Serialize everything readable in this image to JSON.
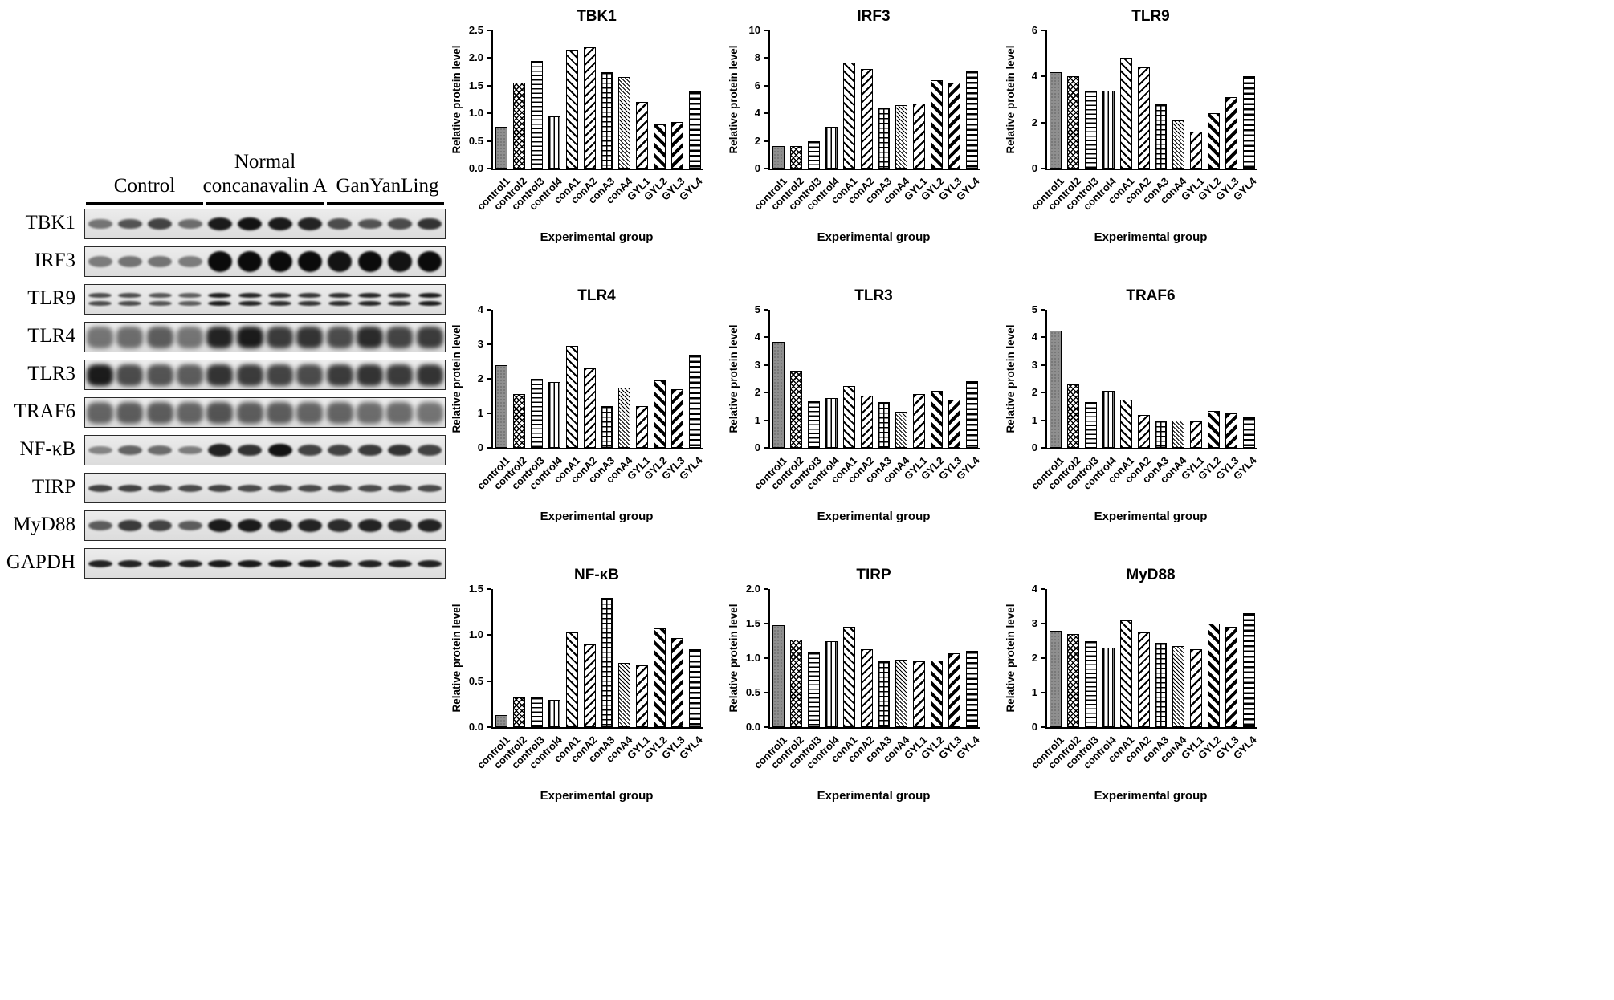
{
  "blot": {
    "group_headers": {
      "normal": "Normal",
      "control": "Control",
      "concanavalin": "concanavalin A",
      "ganyanling": "GanYanLing"
    },
    "rows": [
      {
        "label": "TBK1",
        "style": "normal",
        "intensities": [
          0.35,
          0.55,
          0.65,
          0.4,
          0.9,
          0.95,
          0.9,
          0.85,
          0.6,
          0.55,
          0.6,
          0.75
        ]
      },
      {
        "label": "IRF3",
        "style": "thick",
        "intensities": [
          0.3,
          0.35,
          0.35,
          0.3,
          1,
          1,
          1,
          1,
          0.95,
          1,
          0.95,
          1
        ]
      },
      {
        "label": "TLR9",
        "style": "double",
        "intensities": [
          0.6,
          0.6,
          0.55,
          0.5,
          0.9,
          0.85,
          0.8,
          0.75,
          0.8,
          0.85,
          0.8,
          0.9
        ]
      },
      {
        "label": "TLR4",
        "style": "smear",
        "intensities": [
          0.35,
          0.4,
          0.5,
          0.35,
          0.85,
          0.9,
          0.7,
          0.75,
          0.6,
          0.8,
          0.65,
          0.7
        ]
      },
      {
        "label": "TLR3",
        "style": "smear",
        "intensities": [
          0.9,
          0.6,
          0.55,
          0.5,
          0.75,
          0.7,
          0.65,
          0.6,
          0.7,
          0.75,
          0.7,
          0.75
        ]
      },
      {
        "label": "TRAF6",
        "style": "smear",
        "intensities": [
          0.45,
          0.5,
          0.5,
          0.45,
          0.55,
          0.5,
          0.5,
          0.45,
          0.45,
          0.4,
          0.4,
          0.35
        ]
      },
      {
        "label": "NF-κB",
        "style": "normal",
        "intensities": [
          0.25,
          0.45,
          0.4,
          0.3,
          0.85,
          0.75,
          0.95,
          0.65,
          0.65,
          0.7,
          0.75,
          0.65
        ]
      },
      {
        "label": "TIRP",
        "style": "thin",
        "intensities": [
          0.65,
          0.65,
          0.6,
          0.6,
          0.65,
          0.6,
          0.6,
          0.6,
          0.6,
          0.6,
          0.6,
          0.6
        ]
      },
      {
        "label": "MyD88",
        "style": "normal",
        "intensities": [
          0.5,
          0.7,
          0.65,
          0.5,
          0.9,
          0.9,
          0.85,
          0.85,
          0.8,
          0.85,
          0.8,
          0.85
        ]
      },
      {
        "label": "GAPDH",
        "style": "thin",
        "intensities": [
          0.85,
          0.85,
          0.85,
          0.85,
          0.9,
          0.9,
          0.9,
          0.9,
          0.85,
          0.85,
          0.85,
          0.85
        ]
      }
    ]
  },
  "chart_data": [
    {
      "type": "bar",
      "title": "TBK1",
      "xlabel": "Experimental group",
      "ylabel": "Relative protein level",
      "ylim": [
        0,
        2.5
      ],
      "yticks": [
        "0.0",
        "0.5",
        "1.0",
        "1.5",
        "2.0",
        "2.5"
      ],
      "categories": [
        "control1",
        "control2",
        "control3",
        "control4",
        "conA1",
        "conA2",
        "conA3",
        "conA4",
        "GYL1",
        "GYL2",
        "GYL3",
        "GYL4"
      ],
      "values": [
        0.75,
        1.55,
        1.95,
        0.95,
        2.15,
        2.2,
        1.75,
        1.65,
        1.2,
        0.8,
        0.85,
        1.4
      ]
    },
    {
      "type": "bar",
      "title": "IRF3",
      "xlabel": "Experimental group",
      "ylabel": "Relative protein level",
      "ylim": [
        0,
        10
      ],
      "yticks": [
        "0",
        "2",
        "4",
        "6",
        "8",
        "10"
      ],
      "categories": [
        "control1",
        "control2",
        "control3",
        "control4",
        "conA1",
        "conA2",
        "conA3",
        "conA4",
        "GYL1",
        "GYL2",
        "GYL3",
        "GYL4"
      ],
      "values": [
        1.6,
        1.6,
        2.0,
        3.0,
        7.7,
        7.2,
        4.4,
        4.6,
        4.7,
        6.4,
        6.2,
        7.1
      ]
    },
    {
      "type": "bar",
      "title": "TLR9",
      "xlabel": "Experimental group",
      "ylabel": "Relative protein level",
      "ylim": [
        0,
        6
      ],
      "yticks": [
        "0",
        "2",
        "4",
        "6"
      ],
      "categories": [
        "control1",
        "control2",
        "control3",
        "control4",
        "conA1",
        "conA2",
        "conA3",
        "conA4",
        "GYL1",
        "GYL2",
        "GYL3",
        "GYL4"
      ],
      "values": [
        4.2,
        4.0,
        3.4,
        3.4,
        4.8,
        4.4,
        2.8,
        2.1,
        1.6,
        2.4,
        3.1,
        4.0
      ]
    },
    {
      "type": "bar",
      "title": "TLR4",
      "xlabel": "Experimental group",
      "ylabel": "Relative protein level",
      "ylim": [
        0,
        4
      ],
      "yticks": [
        "0",
        "1",
        "2",
        "3",
        "4"
      ],
      "categories": [
        "control1",
        "control2",
        "control3",
        "control4",
        "conA1",
        "conA2",
        "conA3",
        "conA4",
        "GYL1",
        "GYL2",
        "GYL3",
        "GYL4"
      ],
      "values": [
        2.4,
        1.55,
        2.0,
        1.9,
        2.95,
        2.3,
        1.2,
        1.75,
        1.2,
        1.95,
        1.7,
        2.7
      ]
    },
    {
      "type": "bar",
      "title": "TLR3",
      "xlabel": "Experimental group",
      "ylabel": "Relative protein level",
      "ylim": [
        0,
        5
      ],
      "yticks": [
        "0",
        "1",
        "2",
        "3",
        "4",
        "5"
      ],
      "categories": [
        "control1",
        "control2",
        "control3",
        "control4",
        "conA1",
        "conA2",
        "conA3",
        "conA4",
        "GYL1",
        "GYL2",
        "GYL3",
        "GYL4"
      ],
      "values": [
        3.85,
        2.8,
        1.7,
        1.8,
        2.25,
        1.9,
        1.65,
        1.3,
        1.95,
        2.05,
        1.75,
        2.4
      ]
    },
    {
      "type": "bar",
      "title": "TRAF6",
      "xlabel": "Experimental group",
      "ylabel": "Relative protein level",
      "ylim": [
        0,
        5
      ],
      "yticks": [
        "0",
        "1",
        "2",
        "3",
        "4",
        "5"
      ],
      "categories": [
        "control1",
        "control2",
        "control3",
        "control4",
        "conA1",
        "conA2",
        "conA3",
        "conA4",
        "GYL1",
        "GYL2",
        "GYL3",
        "GYL4"
      ],
      "values": [
        4.25,
        2.3,
        1.65,
        2.05,
        1.75,
        1.2,
        1.0,
        1.0,
        0.95,
        1.35,
        1.25,
        1.1
      ]
    },
    {
      "type": "bar",
      "title": "NF-κB",
      "xlabel": "Experimental group",
      "ylabel": "Relative protein level",
      "ylim": [
        0,
        1.5
      ],
      "yticks": [
        "0.0",
        "0.5",
        "1.0",
        "1.5"
      ],
      "categories": [
        "control1",
        "control2",
        "control3",
        "control4",
        "conA1",
        "conA2",
        "conA3",
        "conA4",
        "GYL1",
        "GYL2",
        "GYL3",
        "GYL4"
      ],
      "values": [
        0.13,
        0.32,
        0.32,
        0.3,
        1.03,
        0.9,
        1.4,
        0.7,
        0.67,
        1.07,
        0.97,
        0.85
      ]
    },
    {
      "type": "bar",
      "title": "TIRP",
      "xlabel": "Experimental group",
      "ylabel": "Relative protein level",
      "ylim": [
        0,
        2.0
      ],
      "yticks": [
        "0.0",
        "0.5",
        "1.0",
        "1.5",
        "2.0"
      ],
      "categories": [
        "control1",
        "control2",
        "control3",
        "control4",
        "conA1",
        "conA2",
        "conA3",
        "conA4",
        "GYL1",
        "GYL2",
        "GYL3",
        "GYL4"
      ],
      "values": [
        1.48,
        1.27,
        1.08,
        1.25,
        1.45,
        1.13,
        0.95,
        0.98,
        0.95,
        0.97,
        1.07,
        1.1
      ]
    },
    {
      "type": "bar",
      "title": "MyD88",
      "xlabel": "Experimental group",
      "ylabel": "Relative protein level",
      "ylim": [
        0,
        4
      ],
      "yticks": [
        "0",
        "1",
        "2",
        "3",
        "4"
      ],
      "categories": [
        "control1",
        "control2",
        "control3",
        "control4",
        "conA1",
        "conA2",
        "conA3",
        "conA4",
        "GYL1",
        "GYL2",
        "GYL3",
        "GYL4"
      ],
      "values": [
        2.8,
        2.7,
        2.5,
        2.3,
        3.1,
        2.75,
        2.45,
        2.35,
        2.25,
        3.0,
        2.9,
        3.3
      ]
    }
  ]
}
